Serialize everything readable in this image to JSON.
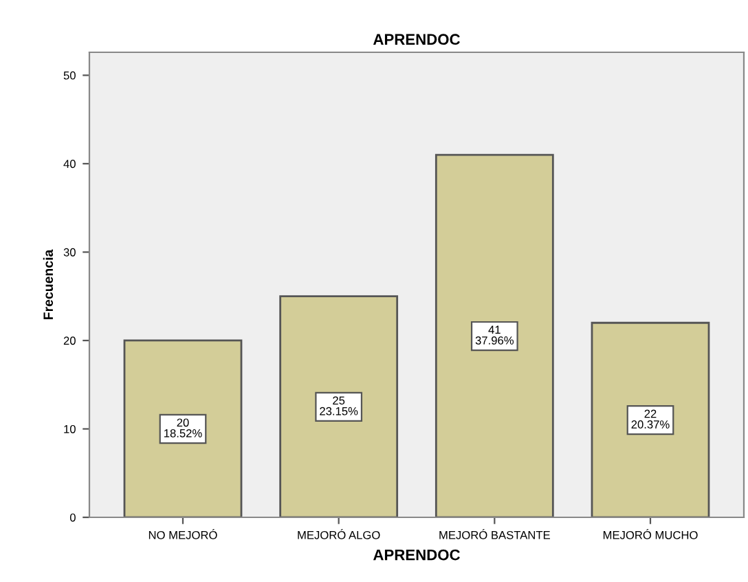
{
  "chart_data": {
    "type": "bar",
    "title": "APRENDOC",
    "xlabel": "APRENDOC",
    "ylabel": "Frecuencia",
    "categories": [
      "NO MEJORÓ",
      "MEJORÓ ALGO",
      "MEJORÓ BASTANTE",
      "MEJORÓ MUCHO"
    ],
    "values": [
      20,
      25,
      41,
      22
    ],
    "value_labels": [
      "20\n18.52%",
      "25\n23.15%",
      "41\n37.96%",
      "22\n20.37%"
    ],
    "color": "#d3cd98",
    "ylim": [
      0,
      52.6
    ],
    "yticks": [
      0,
      10,
      20,
      30,
      40,
      50
    ],
    "grid": false,
    "legend": false
  }
}
